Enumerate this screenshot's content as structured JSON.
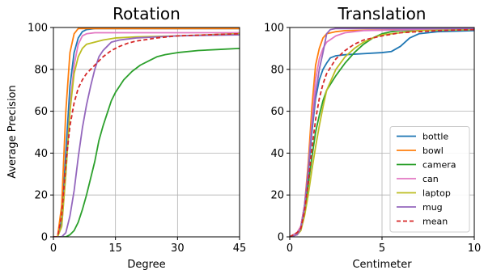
{
  "colors": {
    "bottle": "#1f77b4",
    "bowl": "#ff7f0e",
    "camera": "#2ca02c",
    "can": "#e377c2",
    "laptop": "#bcbd22",
    "mug": "#9467bd",
    "mean": "#d62728"
  },
  "chart_data": [
    {
      "type": "line",
      "title": "Rotation",
      "xlabel": "Degree",
      "ylabel": "Average Precision",
      "xlim": [
        0,
        45
      ],
      "ylim": [
        0,
        100
      ],
      "xticks": [
        0,
        15,
        30,
        45
      ],
      "yticks": [
        0,
        20,
        40,
        60,
        80,
        100
      ],
      "grid": true,
      "series": [
        {
          "name": "bottle",
          "style": "solid",
          "points": [
            [
              0,
              0
            ],
            [
              1,
              0
            ],
            [
              2,
              8
            ],
            [
              3,
              40
            ],
            [
              4,
              72
            ],
            [
              5,
              88
            ],
            [
              6,
              95
            ],
            [
              7,
              98
            ],
            [
              8,
              99
            ],
            [
              10,
              99.5
            ],
            [
              45,
              99.5
            ]
          ]
        },
        {
          "name": "bowl",
          "style": "solid",
          "points": [
            [
              0,
              0
            ],
            [
              1,
              0
            ],
            [
              2,
              15
            ],
            [
              3,
              60
            ],
            [
              4,
              88
            ],
            [
              5,
              97
            ],
            [
              6,
              99.5
            ],
            [
              45,
              99.5
            ]
          ]
        },
        {
          "name": "camera",
          "style": "solid",
          "points": [
            [
              0,
              0
            ],
            [
              3,
              0
            ],
            [
              4,
              1
            ],
            [
              5,
              3
            ],
            [
              6,
              7
            ],
            [
              7,
              13
            ],
            [
              8,
              20
            ],
            [
              9,
              28
            ],
            [
              10,
              36
            ],
            [
              11,
              46
            ],
            [
              12,
              53
            ],
            [
              13,
              59
            ],
            [
              14,
              65
            ],
            [
              15,
              69
            ],
            [
              17,
              75
            ],
            [
              19,
              79
            ],
            [
              21,
              82
            ],
            [
              23,
              84
            ],
            [
              25,
              86
            ],
            [
              27,
              87
            ],
            [
              30,
              88
            ],
            [
              35,
              89
            ],
            [
              40,
              89.5
            ],
            [
              45,
              90
            ]
          ]
        },
        {
          "name": "can",
          "style": "solid",
          "points": [
            [
              0,
              0
            ],
            [
              1,
              0
            ],
            [
              2,
              5
            ],
            [
              3,
              30
            ],
            [
              4,
              62
            ],
            [
              5,
              82
            ],
            [
              6,
              92
            ],
            [
              7,
              96
            ],
            [
              8,
              97
            ],
            [
              10,
              97.5
            ],
            [
              45,
              97.5
            ]
          ]
        },
        {
          "name": "laptop",
          "style": "solid",
          "points": [
            [
              0,
              0
            ],
            [
              1,
              0
            ],
            [
              2,
              5
            ],
            [
              3,
              30
            ],
            [
              4,
              60
            ],
            [
              5,
              78
            ],
            [
              6,
              86
            ],
            [
              7,
              90
            ],
            [
              8,
              92
            ],
            [
              10,
              93
            ],
            [
              12,
              94
            ],
            [
              15,
              95
            ],
            [
              20,
              95.5
            ],
            [
              30,
              96
            ],
            [
              45,
              97
            ]
          ]
        },
        {
          "name": "mug",
          "style": "solid",
          "points": [
            [
              0,
              0
            ],
            [
              2,
              0
            ],
            [
              3,
              2
            ],
            [
              4,
              10
            ],
            [
              5,
              22
            ],
            [
              6,
              38
            ],
            [
              7,
              52
            ],
            [
              8,
              63
            ],
            [
              9,
              72
            ],
            [
              10,
              80
            ],
            [
              11,
              86
            ],
            [
              12,
              89
            ],
            [
              13,
              91
            ],
            [
              14,
              93
            ],
            [
              16,
              94
            ],
            [
              20,
              95
            ],
            [
              30,
              96
            ],
            [
              45,
              96.5
            ]
          ]
        },
        {
          "name": "mean",
          "style": "dashed",
          "points": [
            [
              0,
              0
            ],
            [
              1,
              0
            ],
            [
              2,
              10
            ],
            [
              3,
              35
            ],
            [
              4,
              53
            ],
            [
              5,
              64
            ],
            [
              6,
              71
            ],
            [
              7,
              75
            ],
            [
              8,
              78
            ],
            [
              10,
              82
            ],
            [
              12,
              86
            ],
            [
              14,
              89
            ],
            [
              16,
              91
            ],
            [
              18,
              92.5
            ],
            [
              20,
              93.5
            ],
            [
              25,
              95
            ],
            [
              30,
              96
            ],
            [
              45,
              97
            ]
          ]
        }
      ]
    },
    {
      "type": "line",
      "title": "Translation",
      "xlabel": "Centimeter",
      "ylabel": "",
      "xlim": [
        0,
        10
      ],
      "ylim": [
        0,
        100
      ],
      "xticks": [
        0,
        5,
        10
      ],
      "yticks": [
        0,
        20,
        40,
        60,
        80,
        100
      ],
      "grid": true,
      "legend": "bottom-right",
      "series": [
        {
          "name": "bottle",
          "style": "solid",
          "points": [
            [
              0,
              0
            ],
            [
              0.4,
              2
            ],
            [
              0.6,
              5
            ],
            [
              0.8,
              15
            ],
            [
              1.0,
              30
            ],
            [
              1.2,
              50
            ],
            [
              1.4,
              66
            ],
            [
              1.6,
              75
            ],
            [
              1.8,
              80
            ],
            [
              2.0,
              83
            ],
            [
              2.2,
              85.5
            ],
            [
              2.5,
              86.5
            ],
            [
              3.0,
              87
            ],
            [
              4.0,
              87.5
            ],
            [
              5.0,
              88
            ],
            [
              5.5,
              88.5
            ],
            [
              6.0,
              91
            ],
            [
              6.5,
              95
            ],
            [
              7.0,
              97
            ],
            [
              8.0,
              98
            ],
            [
              10,
              98.5
            ]
          ]
        },
        {
          "name": "bowl",
          "style": "solid",
          "points": [
            [
              0,
              0
            ],
            [
              0.4,
              2
            ],
            [
              0.6,
              5
            ],
            [
              0.8,
              15
            ],
            [
              1.0,
              35
            ],
            [
              1.2,
              62
            ],
            [
              1.4,
              82
            ],
            [
              1.6,
              90
            ],
            [
              1.8,
              95
            ],
            [
              2.0,
              97
            ],
            [
              2.5,
              98
            ],
            [
              3.0,
              98.5
            ],
            [
              10,
              99.5
            ]
          ]
        },
        {
          "name": "camera",
          "style": "solid",
          "points": [
            [
              0,
              0
            ],
            [
              0.4,
              2
            ],
            [
              0.6,
              4
            ],
            [
              0.8,
              12
            ],
            [
              1.0,
              25
            ],
            [
              1.2,
              38
            ],
            [
              1.4,
              50
            ],
            [
              1.6,
              58
            ],
            [
              1.8,
              65
            ],
            [
              2.0,
              70
            ],
            [
              2.5,
              77
            ],
            [
              3.0,
              83
            ],
            [
              3.5,
              88
            ],
            [
              4.0,
              92
            ],
            [
              4.5,
              95
            ],
            [
              5.0,
              97
            ],
            [
              5.5,
              98
            ],
            [
              6.0,
              98.5
            ],
            [
              10,
              99
            ]
          ]
        },
        {
          "name": "can",
          "style": "solid",
          "points": [
            [
              0,
              0
            ],
            [
              0.4,
              2
            ],
            [
              0.6,
              5
            ],
            [
              0.8,
              15
            ],
            [
              1.0,
              32
            ],
            [
              1.2,
              55
            ],
            [
              1.4,
              75
            ],
            [
              1.6,
              85
            ],
            [
              1.8,
              90
            ],
            [
              2.0,
              93
            ],
            [
              2.5,
              96
            ],
            [
              3.0,
              97.5
            ],
            [
              4.0,
              98.5
            ],
            [
              10,
              99.5
            ]
          ]
        },
        {
          "name": "laptop",
          "style": "solid",
          "points": [
            [
              0,
              0
            ],
            [
              0.4,
              1
            ],
            [
              0.6,
              3
            ],
            [
              0.8,
              10
            ],
            [
              1.0,
              20
            ],
            [
              1.2,
              32
            ],
            [
              1.4,
              43
            ],
            [
              1.6,
              53
            ],
            [
              1.8,
              62
            ],
            [
              2.0,
              70
            ],
            [
              2.5,
              80
            ],
            [
              3.0,
              86
            ],
            [
              3.5,
              90
            ],
            [
              4.0,
              93
            ],
            [
              4.5,
              95
            ],
            [
              5.0,
              96.5
            ],
            [
              6.0,
              97.5
            ],
            [
              7.0,
              98.5
            ],
            [
              10,
              99
            ]
          ]
        },
        {
          "name": "mug",
          "style": "solid",
          "points": [
            [
              0,
              0
            ],
            [
              0.4,
              1
            ],
            [
              0.6,
              4
            ],
            [
              0.8,
              14
            ],
            [
              1.0,
              32
            ],
            [
              1.2,
              52
            ],
            [
              1.4,
              68
            ],
            [
              1.6,
              80
            ],
            [
              1.8,
              88
            ],
            [
              2.0,
              97
            ],
            [
              2.2,
              99
            ],
            [
              2.5,
              99.5
            ],
            [
              10,
              99.5
            ]
          ]
        },
        {
          "name": "mean",
          "style": "dashed",
          "points": [
            [
              0,
              0
            ],
            [
              0.4,
              2
            ],
            [
              0.6,
              4
            ],
            [
              0.8,
              12
            ],
            [
              1.0,
              26
            ],
            [
              1.2,
              42
            ],
            [
              1.4,
              56
            ],
            [
              1.6,
              66
            ],
            [
              1.8,
              73
            ],
            [
              2.0,
              78
            ],
            [
              2.5,
              85
            ],
            [
              3.0,
              89
            ],
            [
              3.5,
              92
            ],
            [
              4.0,
              94
            ],
            [
              5.0,
              96
            ],
            [
              6.0,
              97.5
            ],
            [
              8.0,
              98.5
            ],
            [
              10,
              99
            ]
          ]
        }
      ]
    }
  ]
}
